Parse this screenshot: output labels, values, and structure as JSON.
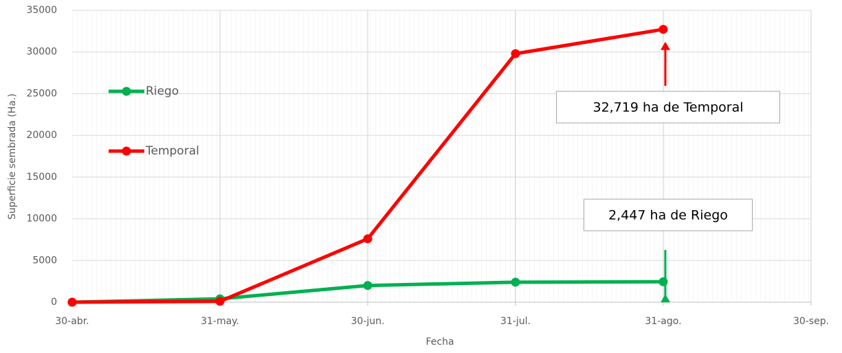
{
  "chart_data": {
    "type": "line",
    "x_label": "Fecha",
    "y_label": "Superficie sembrada (Ha.)",
    "categories": [
      "30-abr.",
      "31-may.",
      "30-jun.",
      "31-jul.",
      "31-ago.",
      "30-sep."
    ],
    "series": [
      {
        "name": "Riego",
        "color": "#00b050",
        "values": [
          0,
          400,
          2000,
          2400,
          2447,
          null
        ]
      },
      {
        "name": "Temporal",
        "color": "#ff0000",
        "values": [
          0,
          100,
          7600,
          29800,
          32719,
          null
        ]
      }
    ],
    "ylim": [
      0,
      35000
    ],
    "yticks": [
      0,
      5000,
      10000,
      15000,
      20000,
      25000,
      30000,
      35000
    ],
    "grid": true,
    "legend": "left",
    "annotations": [
      "2,447 ha de Riego",
      "32,719 ha de Temporal"
    ]
  }
}
